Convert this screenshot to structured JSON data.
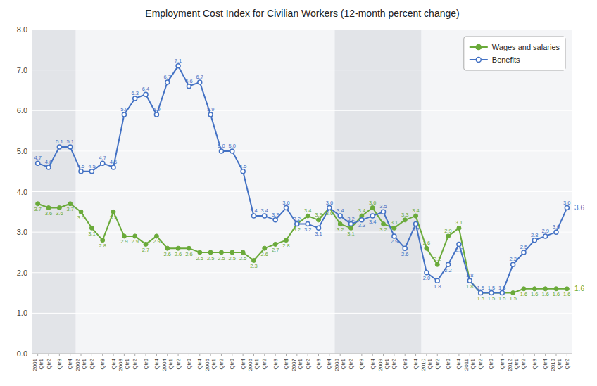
{
  "chart_data": {
    "type": "line",
    "title": "Employment Cost Index for Civilian Workers (12-month percent change)",
    "categories": [
      "2001\nQtr1",
      "Qtr2",
      "Qtr3",
      "Qtr4",
      "2002\nQtr1",
      "Qtr2",
      "Qtr3",
      "Qtr4",
      "2003\nQtr1",
      "Qtr2",
      "Qtr3",
      "Qtr4",
      "2004\nQtr1",
      "Qtr2",
      "Qtr3",
      "Qtr4",
      "2005\nQtr1",
      "Qtr2",
      "Qtr3",
      "Qtr4",
      "2006\nQtr1",
      "Qtr2",
      "Qtr3",
      "Qtr4",
      "2007\nQtr1",
      "Qtr2",
      "Qtr3",
      "Qtr4",
      "2008\nQtr1",
      "Qtr2",
      "Qtr3",
      "Qtr4",
      "2009\nQtr1",
      "Qtr2",
      "Qtr3",
      "Qtr4",
      "2010\nQtr1",
      "Qtr2",
      "Qtr3",
      "Qtr4",
      "2011\nQtr1",
      "Qtr2",
      "Qtr3",
      "Qtr4",
      "2012\nQtr1",
      "Qtr2",
      "Qtr3",
      "Qtr4",
      "2013\nQtr1",
      "Qtr2"
    ],
    "series": [
      {
        "name": "Wages and salaries",
        "color": "#6aaa3a",
        "marker": "circle",
        "values": [
          3.7,
          3.6,
          3.6,
          3.7,
          3.5,
          3.1,
          2.8,
          3.5,
          2.9,
          2.9,
          2.7,
          2.9,
          2.6,
          2.6,
          2.6,
          2.5,
          2.5,
          2.5,
          2.5,
          2.5,
          2.3,
          2.6,
          2.7,
          2.8,
          3.2,
          3.4,
          3.3,
          3.6,
          3.2,
          3.1,
          3.4,
          3.6,
          3.2,
          3.1,
          3.3,
          3.4,
          2.6,
          2.2,
          2.9,
          3.1,
          1.8,
          1.5,
          1.5,
          1.5,
          1.5,
          1.6,
          1.6,
          1.6,
          1.6,
          1.6
        ],
        "value_labels": [
          "3.7",
          "3.6",
          "3.6",
          "3.7",
          "3.5",
          "3.1",
          "2.8",
          "3.5",
          "2.9",
          "2.9",
          "2.7",
          "2.9",
          "2.6",
          "2.6",
          "2.6",
          "2.5",
          "2.5",
          "2.5",
          "2.5",
          "2.5",
          "2.3",
          "2.6",
          "2.7",
          "2.8",
          "3.2",
          "3.4",
          "3.3",
          "3.6",
          "3.2",
          "3.1",
          "3.4",
          "3.6",
          "3.2",
          "3.1",
          "3.3",
          "3.4",
          "2.6",
          "2.2",
          "2.9",
          "3.1",
          "1.8",
          "1.5",
          "1.5",
          "1.5",
          "1.5",
          "1.6",
          "1.6",
          "1.6",
          "1.6",
          "1.6"
        ]
      },
      {
        "name": "Benefits",
        "color": "#4472c4",
        "marker": "open-circle",
        "values": [
          4.7,
          4.6,
          5.1,
          5.1,
          4.5,
          4.5,
          4.7,
          4.6,
          5.9,
          6.3,
          6.4,
          5.9,
          6.7,
          7.1,
          6.6,
          6.7,
          5.9,
          5.0,
          5.0,
          4.5,
          3.4,
          3.4,
          3.3,
          3.6,
          3.2,
          3.2,
          3.1,
          3.6,
          3.4,
          3.2,
          3.3,
          3.4,
          3.5,
          2.9,
          2.6,
          3.2,
          2.0,
          1.8,
          2.2,
          2.7,
          1.8,
          1.5,
          1.5,
          1.5,
          2.2,
          2.5,
          2.8,
          2.9,
          3.0,
          3.6
        ],
        "value_labels": [
          "4.7",
          "4.6",
          "5.1",
          "5.1",
          "4.5",
          "4.5",
          "4.7",
          "4.6",
          "5.9",
          "6.3",
          "6.4",
          "5.9",
          "6.7",
          "7.1",
          "6.6",
          "6.7",
          "5.9",
          "5.0",
          "5.0",
          "4.5",
          "3.4",
          "3.4",
          "3.3",
          "3.6",
          "3.2",
          "3.2",
          "3.1",
          "3.6",
          "3.4",
          "3.2",
          "3.3",
          "3.4",
          "3.5",
          "2.9",
          "2.6",
          "3.2",
          "2.0",
          "1.8",
          "2.2",
          "2.7",
          "1.8",
          "1.5",
          "1.5",
          "1.5",
          "2.2",
          "2.5",
          "2.8",
          "2.9",
          "3.0",
          "3.6"
        ]
      }
    ],
    "shaded_ranges": [
      {
        "start": 0,
        "end": 3
      },
      {
        "start": 28,
        "end": 35
      }
    ],
    "ylim": [
      0.0,
      8.0
    ],
    "yticks": [
      {
        "value": 0,
        "label": "0.0"
      },
      {
        "value": 1,
        "label": "1.0"
      },
      {
        "value": 2,
        "label": "2.0"
      },
      {
        "value": 3,
        "label": "3.0"
      },
      {
        "value": 4,
        "label": "4.0"
      },
      {
        "value": 5,
        "label": "5.0"
      },
      {
        "value": 6,
        "label": "6.0"
      },
      {
        "value": 7,
        "label": "7.0"
      },
      {
        "value": 8,
        "label": "8.0"
      }
    ],
    "grid": true,
    "legend": "upper right",
    "data_labels": true
  }
}
